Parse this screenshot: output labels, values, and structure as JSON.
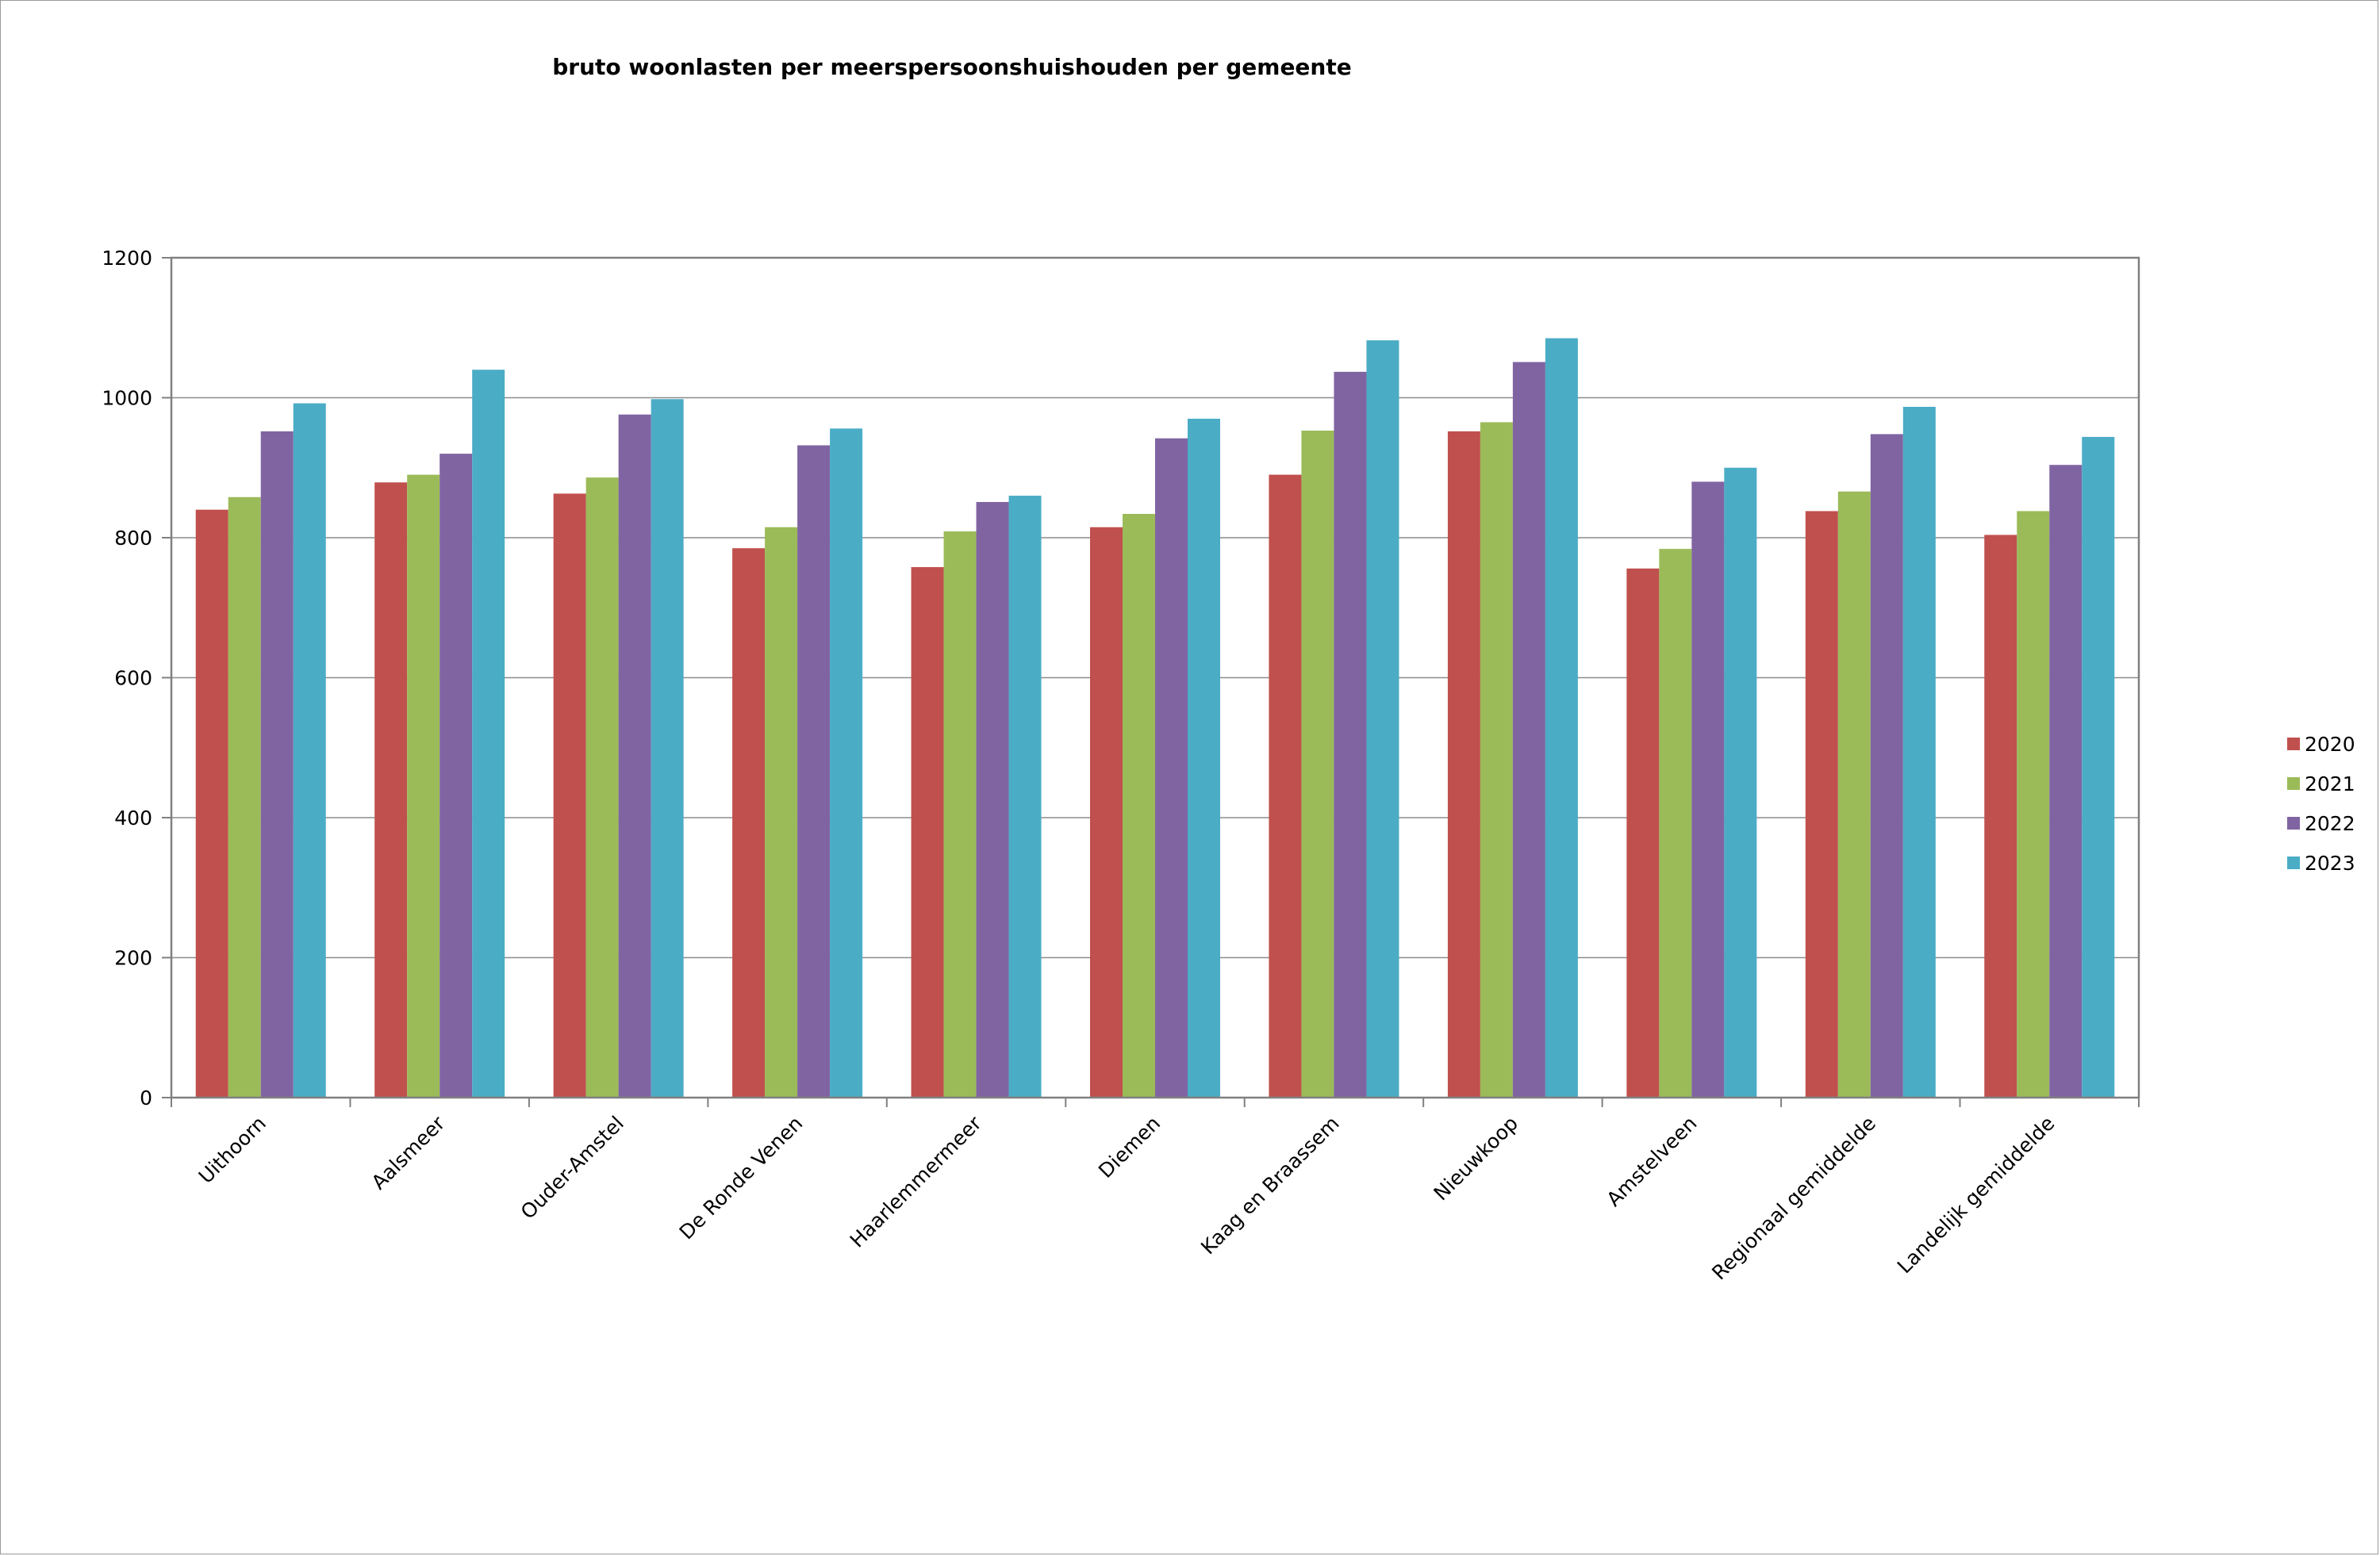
{
  "chart_data": {
    "type": "bar",
    "title": "bruto woonlasten per meerspersoonshuishouden per gemeente",
    "categories": [
      "Uithoorn",
      "Aalsmeer",
      "Ouder-Amstel",
      "De Ronde Venen",
      "Haarlemmermeer",
      "Diemen",
      "Kaag en Braassem",
      "Nieuwkoop",
      "Amstelveen",
      "Regionaal gemiddelde",
      "Landelijk gemiddelde"
    ],
    "series": [
      {
        "name": "2020",
        "color": "#c0504d",
        "values": [
          840,
          879,
          863,
          785,
          758,
          815,
          890,
          952,
          756,
          838,
          804
        ]
      },
      {
        "name": "2021",
        "color": "#9bbb59",
        "values": [
          858,
          890,
          886,
          815,
          809,
          834,
          953,
          965,
          784,
          866,
          838
        ]
      },
      {
        "name": "2022",
        "color": "#8064a2",
        "values": [
          952,
          920,
          976,
          932,
          851,
          942,
          1037,
          1051,
          880,
          948,
          904
        ]
      },
      {
        "name": "2023",
        "color": "#4bacc6",
        "values": [
          992,
          1040,
          998,
          956,
          860,
          970,
          1082,
          1085,
          900,
          987,
          944
        ]
      }
    ],
    "yticks": [
      0,
      200,
      400,
      600,
      800,
      1000,
      1200
    ],
    "ylim": [
      0,
      1200
    ],
    "grid": true,
    "legend_position": "right"
  }
}
